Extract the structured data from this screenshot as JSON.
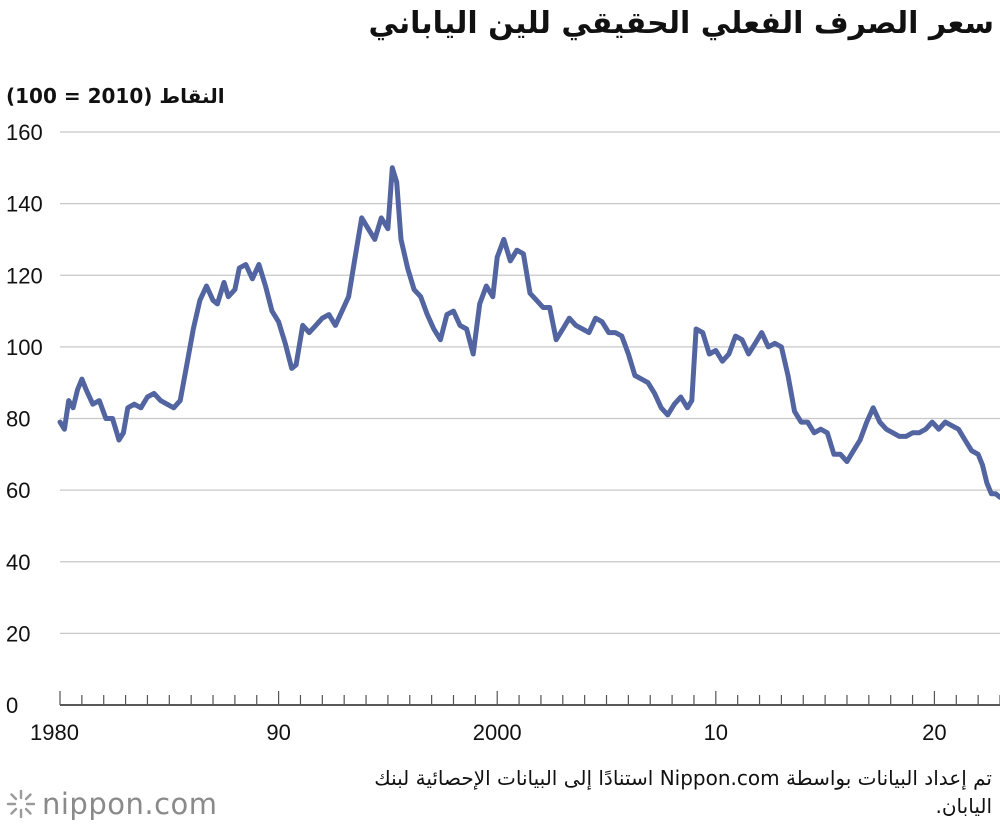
{
  "chart_data": {
    "type": "line",
    "title": "سعر الصرف الفعلي الحقيقي للين الياباني",
    "ylabel": "النقاط (2010 = 100)",
    "xlabel": "",
    "ylim": [
      0,
      160
    ],
    "xlim": [
      1980,
      2023
    ],
    "yticks": [
      0,
      20,
      40,
      60,
      80,
      100,
      120,
      140,
      160
    ],
    "xticks": [
      {
        "value": 1980,
        "label": "1980"
      },
      {
        "value": 1990,
        "label": "90"
      },
      {
        "value": 2000,
        "label": "2000"
      },
      {
        "value": 2010,
        "label": "10"
      },
      {
        "value": 2020,
        "label": "20"
      }
    ],
    "grid": true,
    "line_color": "#5265a0",
    "series": [
      {
        "x": [
          1980.0,
          1980.2,
          1980.4,
          1980.6,
          1980.8,
          1981.0,
          1981.2,
          1981.5,
          1981.8,
          1982.1,
          1982.4,
          1982.7,
          1982.9,
          1983.1,
          1983.4,
          1983.7,
          1984.0,
          1984.3,
          1984.6,
          1984.9,
          1985.2,
          1985.5,
          1985.8,
          1986.1,
          1986.4,
          1986.7,
          1987.0,
          1987.2,
          1987.5,
          1987.7,
          1988.0,
          1988.2,
          1988.5,
          1988.8,
          1989.1,
          1989.4,
          1989.7,
          1990.0,
          1990.3,
          1990.6,
          1990.8,
          1991.1,
          1991.4,
          1991.7,
          1992.0,
          1992.3,
          1992.6,
          1992.9,
          1993.2,
          1993.5,
          1993.8,
          1994.1,
          1994.4,
          1994.7,
          1995.0,
          1995.2,
          1995.4,
          1995.6,
          1995.9,
          1996.2,
          1996.5,
          1996.8,
          1997.1,
          1997.4,
          1997.7,
          1998.0,
          1998.3,
          1998.6,
          1998.9,
          1999.2,
          1999.5,
          1999.8,
          2000.0,
          2000.3,
          2000.6,
          2000.9,
          2001.2,
          2001.5,
          2001.8,
          2002.1,
          2002.4,
          2002.7,
          2003.0,
          2003.3,
          2003.6,
          2003.9,
          2004.2,
          2004.5,
          2004.8,
          2005.1,
          2005.4,
          2005.7,
          2006.0,
          2006.3,
          2006.6,
          2006.9,
          2007.2,
          2007.5,
          2007.8,
          2008.1,
          2008.4,
          2008.7,
          2008.9,
          2009.1,
          2009.4,
          2009.7,
          2010.0,
          2010.3,
          2010.6,
          2010.9,
          2011.2,
          2011.5,
          2011.8,
          2012.1,
          2012.4,
          2012.7,
          2013.0,
          2013.3,
          2013.6,
          2013.9,
          2014.2,
          2014.5,
          2014.8,
          2015.1,
          2015.4,
          2015.7,
          2016.0,
          2016.3,
          2016.6,
          2016.9,
          2017.2,
          2017.5,
          2017.8,
          2018.1,
          2018.4,
          2018.7,
          2019.0,
          2019.3,
          2019.6,
          2019.9,
          2020.2,
          2020.5,
          2020.8,
          2021.1,
          2021.4,
          2021.7,
          2022.0,
          2022.2,
          2022.4,
          2022.6,
          2022.8,
          2023.0
        ],
        "values": [
          79,
          77,
          85,
          83,
          88,
          91,
          88,
          84,
          85,
          80,
          80,
          74,
          76,
          83,
          84,
          83,
          86,
          87,
          85,
          84,
          83,
          85,
          95,
          105,
          113,
          117,
          113,
          112,
          118,
          114,
          116,
          122,
          123,
          119,
          123,
          117,
          110,
          107,
          101,
          94,
          95,
          106,
          104,
          106,
          108,
          109,
          106,
          110,
          114,
          125,
          136,
          133,
          130,
          136,
          133,
          150,
          146,
          130,
          122,
          116,
          114,
          109,
          105,
          102,
          109,
          110,
          106,
          105,
          98,
          112,
          117,
          114,
          125,
          130,
          124,
          127,
          126,
          115,
          113,
          111,
          111,
          102,
          105,
          108,
          106,
          105,
          104,
          108,
          107,
          104,
          104,
          103,
          98,
          92,
          91,
          90,
          87,
          83,
          81,
          84,
          86,
          83,
          85,
          105,
          104,
          98,
          99,
          96,
          98,
          103,
          102,
          98,
          101,
          104,
          100,
          101,
          100,
          92,
          82,
          79,
          79,
          76,
          77,
          76,
          70,
          70,
          68,
          71,
          74,
          79,
          83,
          79,
          77,
          76,
          75,
          75,
          76,
          76,
          77,
          79,
          77,
          79,
          78,
          77,
          74,
          71,
          70,
          67,
          62,
          59,
          59,
          58
        ]
      }
    ]
  },
  "source": "تم إعداد البيانات بواسطة Nippon.com استنادًا إلى البيانات الإحصائية لبنك اليابان.",
  "logo": {
    "icon": "nippon-burst-icon",
    "text": "nippon.com"
  }
}
